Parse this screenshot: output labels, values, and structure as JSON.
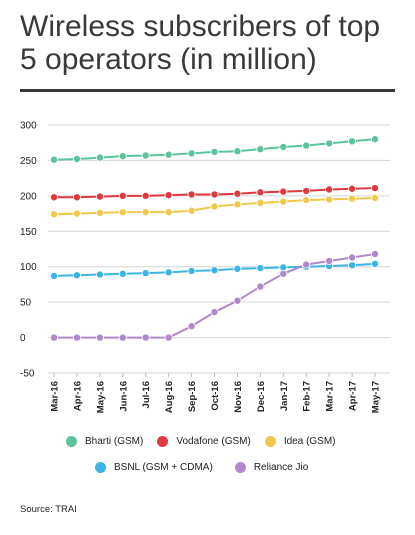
{
  "title": "Wireless subscribers of top 5 operators (in million)",
  "source": "Source: TRAI",
  "chart_data": {
    "type": "line",
    "title": "Wireless subscribers of top 5 operators (in million)",
    "xlabel": "",
    "ylabel": "",
    "ylim": [
      -50,
      300
    ],
    "yticks": [
      300,
      250,
      200,
      150,
      100,
      50,
      0,
      -50
    ],
    "grid": true,
    "legend_position": "bottom",
    "categories": [
      "Mar-16",
      "Apr-16",
      "May-16",
      "Jun-16",
      "Jul-16",
      "Aug-16",
      "Sep-16",
      "Oct-16",
      "Nov-16",
      "Dec-16",
      "Jan-17",
      "Feb-17",
      "Mar-17",
      "Apr-17",
      "May-17"
    ],
    "series": [
      {
        "name": "Bharti (GSM)",
        "color": "#5cc39a",
        "values": [
          251,
          252,
          254,
          256,
          257,
          258,
          260,
          262,
          263,
          266,
          269,
          271,
          274,
          277,
          280
        ]
      },
      {
        "name": "Vodafone (GSM)",
        "color": "#e0383e",
        "values": [
          198,
          198,
          199,
          200,
          200,
          201,
          202,
          202,
          203,
          205,
          206,
          207,
          209,
          210,
          211
        ]
      },
      {
        "name": "Idea (GSM)",
        "color": "#f2c84b",
        "values": [
          174,
          175,
          176,
          177,
          177,
          177,
          179,
          185,
          188,
          190,
          192,
          194,
          195,
          196,
          197
        ]
      },
      {
        "name": "BSNL (GSM + CDMA)",
        "color": "#3cb4e5",
        "values": [
          87,
          88,
          89,
          90,
          91,
          92,
          94,
          95,
          97,
          98,
          99,
          100,
          101,
          102,
          104
        ]
      },
      {
        "name": "Reliance Jio",
        "color": "#b088cc",
        "values": [
          0,
          0,
          0,
          0,
          0,
          0,
          16,
          36,
          52,
          72,
          90,
          103,
          108,
          113,
          118
        ]
      }
    ]
  }
}
